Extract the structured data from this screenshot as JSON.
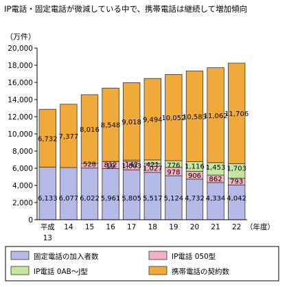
{
  "chart_data": {
    "type": "bar",
    "stacked": true,
    "title": "IP電話・固定電話が微減している中で、携帯電話は継続して増加傾向",
    "unit_label": "（万件）",
    "x_suffix": "（年度）",
    "categories": [
      {
        "line1": "平成",
        "line2": "13"
      },
      {
        "line1": "14",
        "line2": ""
      },
      {
        "line1": "15",
        "line2": ""
      },
      {
        "line1": "16",
        "line2": ""
      },
      {
        "line1": "17",
        "line2": ""
      },
      {
        "line1": "18",
        "line2": ""
      },
      {
        "line1": "19",
        "line2": ""
      },
      {
        "line1": "20",
        "line2": ""
      },
      {
        "line1": "21",
        "line2": ""
      },
      {
        "line1": "22",
        "line2": ""
      }
    ],
    "ylim": [
      0,
      20000
    ],
    "yticks": [
      "0",
      "2,000",
      "4,000",
      "6,000",
      "8,000",
      "10,000",
      "12,000",
      "14,000",
      "16,000",
      "18,000",
      "20,000"
    ],
    "series": [
      {
        "name": "固定電話の加入者数",
        "color": "#b4b9e6",
        "values": [
          6133,
          6077,
          6022,
          5961,
          5805,
          5517,
          5124,
          4732,
          4334,
          4042
        ],
        "labels": [
          "6,133",
          "6,077",
          "6,022",
          "5,961",
          "5,805",
          "5,517",
          "5,124",
          "4,732",
          "4,334",
          "4,042"
        ]
      },
      {
        "name": "IP電話 050型",
        "color": "#f3b1c4",
        "values": [
          0,
          0,
          528,
          812,
          1003,
          1027,
          978,
          906,
          862,
          793
        ],
        "labels": [
          "",
          "",
          "528",
          "812",
          "1,003",
          "1,027",
          "978",
          "906",
          "862",
          "793"
        ]
      },
      {
        "name": "IP電話 0AB～J型",
        "color": "#c4e6a0",
        "values": [
          0,
          0,
          0,
          19,
          142,
          421,
          776,
          1116,
          1453,
          1703
        ],
        "labels": [
          "",
          "",
          "",
          "19",
          "142",
          "421",
          "776",
          "1,116",
          "1,453",
          "1,703"
        ]
      },
      {
        "name": "携帯電話の契約数",
        "color": "#f0aa3c",
        "values": [
          6732,
          7377,
          8016,
          8548,
          9018,
          9494,
          10052,
          10583,
          11062,
          11706
        ],
        "labels": [
          "6,732",
          "7,377",
          "8,016",
          "8,548",
          "9,018",
          "9,494",
          "10,052",
          "10,583",
          "11,062",
          "11,706"
        ]
      }
    ],
    "legend_position": "bottom",
    "grid": false
  }
}
